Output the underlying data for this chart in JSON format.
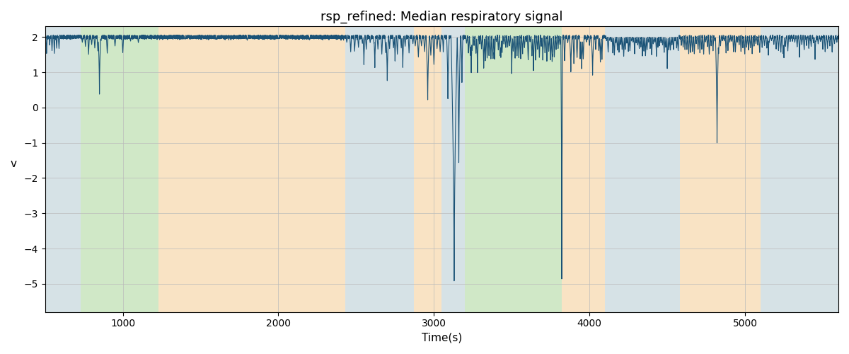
{
  "title": "rsp_refined: Median respiratory signal",
  "xlabel": "Time(s)",
  "ylabel": "v",
  "xlim": [
    500,
    5600
  ],
  "ylim": [
    -5.8,
    2.3
  ],
  "line_color": "#1a5276",
  "line_width": 0.8,
  "bg_regions": [
    {
      "start": 500,
      "end": 730,
      "color": "#aec6cf",
      "alpha": 0.5
    },
    {
      "start": 730,
      "end": 1200,
      "color": "#90c97a",
      "alpha": 0.42
    },
    {
      "start": 1200,
      "end": 1230,
      "color": "#90c97a",
      "alpha": 0.42
    },
    {
      "start": 1230,
      "end": 2430,
      "color": "#f5c98a",
      "alpha": 0.5
    },
    {
      "start": 2430,
      "end": 2870,
      "color": "#aec6cf",
      "alpha": 0.5
    },
    {
      "start": 2870,
      "end": 3050,
      "color": "#f5c98a",
      "alpha": 0.5
    },
    {
      "start": 3050,
      "end": 3200,
      "color": "#aec6cf",
      "alpha": 0.5
    },
    {
      "start": 3200,
      "end": 3270,
      "color": "#90c97a",
      "alpha": 0.42
    },
    {
      "start": 3270,
      "end": 3820,
      "color": "#90c97a",
      "alpha": 0.42
    },
    {
      "start": 3820,
      "end": 4100,
      "color": "#f5c98a",
      "alpha": 0.5
    },
    {
      "start": 4100,
      "end": 4580,
      "color": "#aec6cf",
      "alpha": 0.5
    },
    {
      "start": 4580,
      "end": 5100,
      "color": "#f5c98a",
      "alpha": 0.5
    },
    {
      "start": 5100,
      "end": 5600,
      "color": "#aec6cf",
      "alpha": 0.5
    }
  ],
  "xticks": [
    1000,
    2000,
    3000,
    4000,
    5000
  ],
  "yticks": [
    2,
    1,
    0,
    -1,
    -2,
    -3,
    -4,
    -5
  ],
  "grid_color": "#bbbbbb",
  "grid_lw": 0.5,
  "title_fontsize": 13,
  "label_fontsize": 11,
  "tick_fontsize": 10,
  "seed": 42
}
